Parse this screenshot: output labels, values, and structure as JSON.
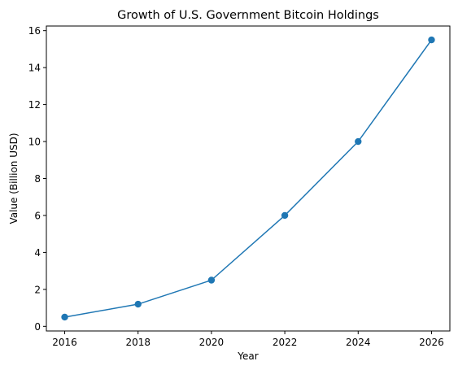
{
  "chart_data": {
    "type": "line",
    "title": "Growth of U.S. Government Bitcoin Holdings",
    "xlabel": "Year",
    "ylabel": "Value (Billion USD)",
    "x": [
      2016,
      2018,
      2020,
      2022,
      2024,
      2026
    ],
    "series": [
      {
        "values": [
          0.5,
          1.2,
          2.5,
          6,
          10,
          15.5
        ]
      }
    ],
    "xlim": [
      2015.5,
      2026.5
    ],
    "ylim": [
      -0.25,
      16.25
    ],
    "xticks": [
      2016,
      2018,
      2020,
      2022,
      2024,
      2026
    ],
    "yticks": [
      0,
      2,
      4,
      6,
      8,
      10,
      12,
      14,
      16
    ],
    "markers": true,
    "grid": false,
    "colors": {
      "series": "#1f77b4",
      "axes": "#000000",
      "background": "#ffffff"
    }
  }
}
